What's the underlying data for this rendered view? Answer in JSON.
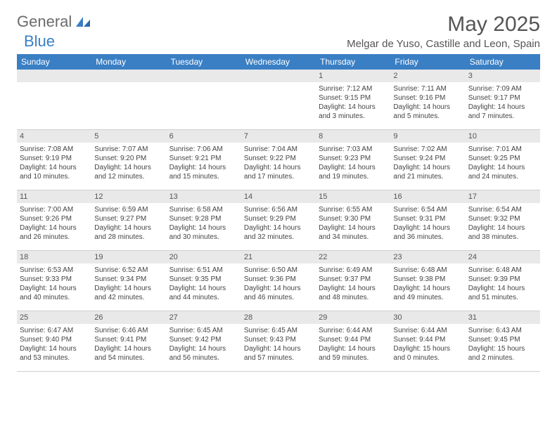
{
  "logo": {
    "part1": "General",
    "part2": "Blue"
  },
  "title": "May 2025",
  "location": "Melgar de Yuso, Castille and Leon, Spain",
  "colors": {
    "header_bg": "#3a7fc4",
    "header_text": "#ffffff",
    "daynum_bg": "#e9e9e9",
    "border": "#cfcfcf",
    "text": "#444444",
    "logo_grey": "#6b6b6b",
    "logo_blue": "#3a7fc4"
  },
  "weekdays": [
    "Sunday",
    "Monday",
    "Tuesday",
    "Wednesday",
    "Thursday",
    "Friday",
    "Saturday"
  ],
  "weeks": [
    [
      null,
      null,
      null,
      null,
      {
        "n": "1",
        "sr": "7:12 AM",
        "ss": "9:15 PM",
        "dl": "14 hours and 3 minutes."
      },
      {
        "n": "2",
        "sr": "7:11 AM",
        "ss": "9:16 PM",
        "dl": "14 hours and 5 minutes."
      },
      {
        "n": "3",
        "sr": "7:09 AM",
        "ss": "9:17 PM",
        "dl": "14 hours and 7 minutes."
      }
    ],
    [
      {
        "n": "4",
        "sr": "7:08 AM",
        "ss": "9:19 PM",
        "dl": "14 hours and 10 minutes."
      },
      {
        "n": "5",
        "sr": "7:07 AM",
        "ss": "9:20 PM",
        "dl": "14 hours and 12 minutes."
      },
      {
        "n": "6",
        "sr": "7:06 AM",
        "ss": "9:21 PM",
        "dl": "14 hours and 15 minutes."
      },
      {
        "n": "7",
        "sr": "7:04 AM",
        "ss": "9:22 PM",
        "dl": "14 hours and 17 minutes."
      },
      {
        "n": "8",
        "sr": "7:03 AM",
        "ss": "9:23 PM",
        "dl": "14 hours and 19 minutes."
      },
      {
        "n": "9",
        "sr": "7:02 AM",
        "ss": "9:24 PM",
        "dl": "14 hours and 21 minutes."
      },
      {
        "n": "10",
        "sr": "7:01 AM",
        "ss": "9:25 PM",
        "dl": "14 hours and 24 minutes."
      }
    ],
    [
      {
        "n": "11",
        "sr": "7:00 AM",
        "ss": "9:26 PM",
        "dl": "14 hours and 26 minutes."
      },
      {
        "n": "12",
        "sr": "6:59 AM",
        "ss": "9:27 PM",
        "dl": "14 hours and 28 minutes."
      },
      {
        "n": "13",
        "sr": "6:58 AM",
        "ss": "9:28 PM",
        "dl": "14 hours and 30 minutes."
      },
      {
        "n": "14",
        "sr": "6:56 AM",
        "ss": "9:29 PM",
        "dl": "14 hours and 32 minutes."
      },
      {
        "n": "15",
        "sr": "6:55 AM",
        "ss": "9:30 PM",
        "dl": "14 hours and 34 minutes."
      },
      {
        "n": "16",
        "sr": "6:54 AM",
        "ss": "9:31 PM",
        "dl": "14 hours and 36 minutes."
      },
      {
        "n": "17",
        "sr": "6:54 AM",
        "ss": "9:32 PM",
        "dl": "14 hours and 38 minutes."
      }
    ],
    [
      {
        "n": "18",
        "sr": "6:53 AM",
        "ss": "9:33 PM",
        "dl": "14 hours and 40 minutes."
      },
      {
        "n": "19",
        "sr": "6:52 AM",
        "ss": "9:34 PM",
        "dl": "14 hours and 42 minutes."
      },
      {
        "n": "20",
        "sr": "6:51 AM",
        "ss": "9:35 PM",
        "dl": "14 hours and 44 minutes."
      },
      {
        "n": "21",
        "sr": "6:50 AM",
        "ss": "9:36 PM",
        "dl": "14 hours and 46 minutes."
      },
      {
        "n": "22",
        "sr": "6:49 AM",
        "ss": "9:37 PM",
        "dl": "14 hours and 48 minutes."
      },
      {
        "n": "23",
        "sr": "6:48 AM",
        "ss": "9:38 PM",
        "dl": "14 hours and 49 minutes."
      },
      {
        "n": "24",
        "sr": "6:48 AM",
        "ss": "9:39 PM",
        "dl": "14 hours and 51 minutes."
      }
    ],
    [
      {
        "n": "25",
        "sr": "6:47 AM",
        "ss": "9:40 PM",
        "dl": "14 hours and 53 minutes."
      },
      {
        "n": "26",
        "sr": "6:46 AM",
        "ss": "9:41 PM",
        "dl": "14 hours and 54 minutes."
      },
      {
        "n": "27",
        "sr": "6:45 AM",
        "ss": "9:42 PM",
        "dl": "14 hours and 56 minutes."
      },
      {
        "n": "28",
        "sr": "6:45 AM",
        "ss": "9:43 PM",
        "dl": "14 hours and 57 minutes."
      },
      {
        "n": "29",
        "sr": "6:44 AM",
        "ss": "9:44 PM",
        "dl": "14 hours and 59 minutes."
      },
      {
        "n": "30",
        "sr": "6:44 AM",
        "ss": "9:44 PM",
        "dl": "15 hours and 0 minutes."
      },
      {
        "n": "31",
        "sr": "6:43 AM",
        "ss": "9:45 PM",
        "dl": "15 hours and 2 minutes."
      }
    ]
  ],
  "labels": {
    "sunrise": "Sunrise:",
    "sunset": "Sunset:",
    "daylight": "Daylight:"
  }
}
